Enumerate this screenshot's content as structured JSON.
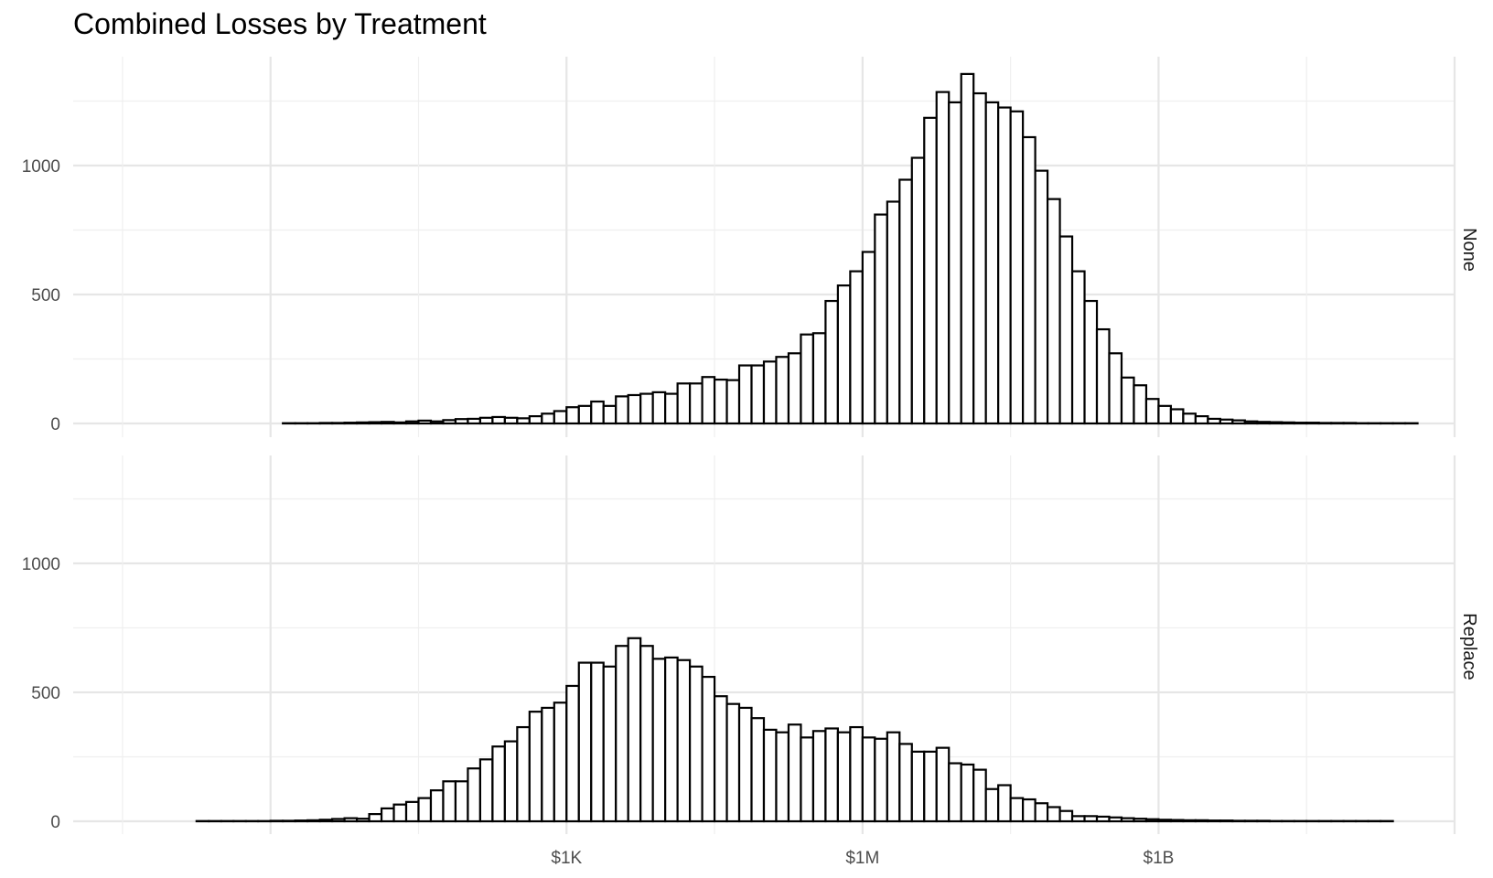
{
  "chart_data": {
    "type": "bar",
    "title": "Combined Losses by Treatment",
    "xlabel": "",
    "ylabel": "",
    "x_scale": "log10",
    "x_range_dollars": [
      0.01,
      1000000000000
    ],
    "x_ticks": [
      {
        "value": 1000,
        "label": "$1K"
      },
      {
        "value": 1000000,
        "label": "$1M"
      },
      {
        "value": 1000000000,
        "label": "$1B"
      }
    ],
    "y_ticks": [
      0,
      500,
      1000
    ],
    "ylim": [
      0,
      1400
    ],
    "grid": true,
    "bin_start_log10": -1.5,
    "bin_width_log10": 0.125,
    "facets": [
      {
        "strip": "None",
        "counts": [
          0,
          0,
          0,
          0,
          0,
          0,
          0,
          0,
          0,
          0,
          0,
          0,
          0,
          1,
          1,
          1,
          2,
          2,
          3,
          4,
          5,
          6,
          4,
          8,
          11,
          8,
          13,
          17,
          18,
          22,
          25,
          22,
          20,
          28,
          38,
          48,
          63,
          68,
          85,
          68,
          105,
          110,
          115,
          121,
          115,
          155,
          155,
          180,
          170,
          168,
          225,
          225,
          240,
          258,
          272,
          345,
          350,
          475,
          535,
          590,
          665,
          810,
          860,
          945,
          1030,
          1185,
          1285,
          1245,
          1355,
          1280,
          1245,
          1225,
          1210,
          1110,
          980,
          870,
          725,
          590,
          475,
          365,
          272,
          178,
          148,
          95,
          68,
          55,
          38,
          28,
          18,
          15,
          12,
          8,
          6,
          5,
          4,
          3,
          3,
          2,
          2,
          2,
          1,
          1,
          1,
          1,
          1,
          0
        ]
      },
      {
        "strip": "Replace",
        "counts": [
          0,
          0,
          0,
          0,
          0,
          0,
          1,
          1,
          1,
          1,
          1,
          1,
          2,
          2,
          3,
          4,
          6,
          9,
          12,
          10,
          28,
          50,
          65,
          75,
          90,
          120,
          155,
          155,
          205,
          240,
          290,
          310,
          365,
          425,
          440,
          460,
          525,
          615,
          615,
          600,
          680,
          710,
          680,
          630,
          635,
          625,
          600,
          560,
          485,
          455,
          440,
          400,
          355,
          345,
          375,
          325,
          350,
          360,
          345,
          365,
          325,
          320,
          345,
          300,
          270,
          270,
          285,
          225,
          220,
          200,
          125,
          140,
          90,
          85,
          70,
          55,
          40,
          20,
          20,
          18,
          15,
          12,
          10,
          8,
          6,
          5,
          4,
          4,
          3,
          3,
          2,
          2,
          2,
          1,
          1,
          1,
          1,
          1,
          1,
          1,
          1,
          1,
          1,
          0,
          0
        ]
      }
    ]
  }
}
